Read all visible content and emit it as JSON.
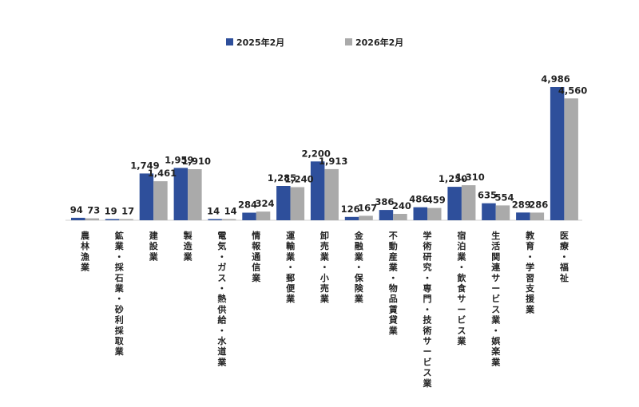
{
  "chart_data": {
    "type": "bar",
    "title": "",
    "xlabel": "",
    "ylabel": "",
    "ylim": [
      0,
      5000
    ],
    "grid": false,
    "legend_position": "top-center",
    "categories": [
      "農林漁業",
      "鉱業・採石業・砂利採取業",
      "建設業",
      "製造業",
      "電気・ガス・熱供給・水道業",
      "情報通信業",
      "運輸業・郵便業",
      "卸売業・小売業",
      "金融業・保険業",
      "不動産業・物品賃貸業",
      "学術研究・専門・技術サービス業",
      "宿泊業・飲食サービス業",
      "生活関連サービス業・娯楽業",
      "教育・学習支援業",
      "医療・福祉"
    ],
    "series": [
      {
        "name": "2025年2月",
        "color": "#2E4F9B",
        "values": [
          94,
          19,
          1749,
          1959,
          14,
          284,
          1285,
          2200,
          126,
          386,
          486,
          1250,
          635,
          289,
          4986
        ],
        "labels": [
          "94",
          "19",
          "1,749",
          "1,959",
          "14",
          "284",
          "1,285",
          "2,200",
          "126",
          "386",
          "486",
          "1,250",
          "635",
          "289",
          "4,986"
        ]
      },
      {
        "name": "2026年2月",
        "color": "#AAAAAA",
        "values": [
          73,
          17,
          1461,
          1910,
          14,
          324,
          1240,
          1913,
          167,
          240,
          459,
          1310,
          554,
          286,
          4560
        ],
        "labels": [
          "73",
          "17",
          "1,461",
          "1,910",
          "14",
          "324",
          "1,240",
          "1,913",
          "167",
          "240",
          "459",
          "1,310",
          "554",
          "286",
          "4,560"
        ]
      }
    ]
  }
}
